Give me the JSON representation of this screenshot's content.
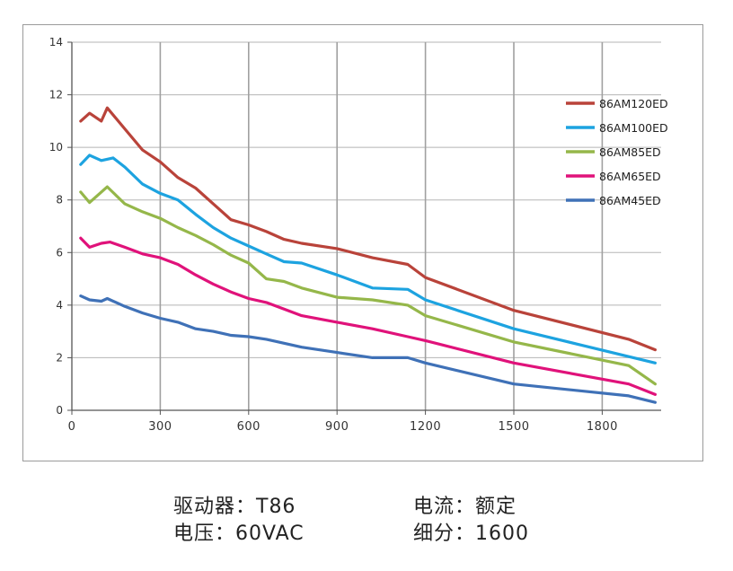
{
  "chart_data": {
    "type": "line",
    "xlim": [
      0,
      2000
    ],
    "ylim": [
      0,
      14
    ],
    "x_ticks": [
      0,
      300,
      600,
      900,
      1200,
      1500,
      1800
    ],
    "y_ticks": [
      0,
      2,
      4,
      6,
      8,
      10,
      12,
      14
    ],
    "grid": true,
    "legend_position": "right",
    "series": [
      {
        "name": "86AM120ED",
        "color": "#b9433a",
        "x": [
          30,
          60,
          100,
          120,
          180,
          240,
          300,
          360,
          420,
          480,
          540,
          600,
          660,
          720,
          780,
          900,
          1020,
          1140,
          1200,
          1500,
          1890,
          1980
        ],
        "y": [
          11.0,
          11.3,
          11.0,
          11.5,
          10.7,
          9.9,
          9.45,
          8.85,
          8.45,
          7.85,
          7.25,
          7.05,
          6.8,
          6.5,
          6.35,
          6.15,
          5.8,
          5.55,
          5.05,
          3.8,
          2.7,
          2.3
        ]
      },
      {
        "name": "86AM100ED",
        "color": "#1da3e0",
        "x": [
          30,
          60,
          100,
          140,
          180,
          240,
          300,
          360,
          420,
          480,
          540,
          600,
          660,
          720,
          780,
          900,
          1020,
          1140,
          1200,
          1500,
          1980
        ],
        "y": [
          9.35,
          9.7,
          9.5,
          9.6,
          9.25,
          8.6,
          8.25,
          8.0,
          7.45,
          6.95,
          6.55,
          6.25,
          5.95,
          5.65,
          5.6,
          5.15,
          4.65,
          4.6,
          4.2,
          3.1,
          1.8
        ]
      },
      {
        "name": "86AM85ED",
        "color": "#95b74a",
        "x": [
          30,
          60,
          100,
          120,
          180,
          240,
          300,
          360,
          420,
          480,
          540,
          600,
          660,
          720,
          780,
          900,
          1020,
          1140,
          1200,
          1500,
          1890,
          1980
        ],
        "y": [
          8.3,
          7.9,
          8.3,
          8.5,
          7.85,
          7.55,
          7.3,
          6.95,
          6.65,
          6.3,
          5.9,
          5.6,
          5.0,
          4.9,
          4.65,
          4.3,
          4.2,
          4.0,
          3.6,
          2.6,
          1.7,
          1.0
        ]
      },
      {
        "name": "86AM65ED",
        "color": "#e0127a",
        "x": [
          30,
          60,
          100,
          130,
          180,
          240,
          300,
          360,
          420,
          480,
          540,
          600,
          660,
          720,
          780,
          900,
          1020,
          1140,
          1200,
          1500,
          1890,
          1980
        ],
        "y": [
          6.55,
          6.2,
          6.35,
          6.4,
          6.2,
          5.95,
          5.8,
          5.55,
          5.15,
          4.8,
          4.5,
          4.25,
          4.1,
          3.85,
          3.6,
          3.35,
          3.1,
          2.8,
          2.65,
          1.8,
          1.0,
          0.6
        ]
      },
      {
        "name": "86AM45ED",
        "color": "#3f71b7",
        "x": [
          30,
          60,
          100,
          120,
          180,
          240,
          300,
          360,
          420,
          480,
          540,
          600,
          660,
          720,
          780,
          900,
          1020,
          1140,
          1200,
          1500,
          1890,
          1980
        ],
        "y": [
          4.35,
          4.2,
          4.15,
          4.25,
          3.95,
          3.7,
          3.5,
          3.35,
          3.1,
          3.0,
          2.85,
          2.8,
          2.7,
          2.55,
          2.4,
          2.2,
          2.0,
          2.0,
          1.8,
          1.0,
          0.55,
          0.3
        ]
      }
    ]
  },
  "captions": {
    "driver": "驱动器：T86",
    "current": "电流：额定",
    "voltage": "电压：60VAC",
    "microstep": "细分：1600"
  }
}
